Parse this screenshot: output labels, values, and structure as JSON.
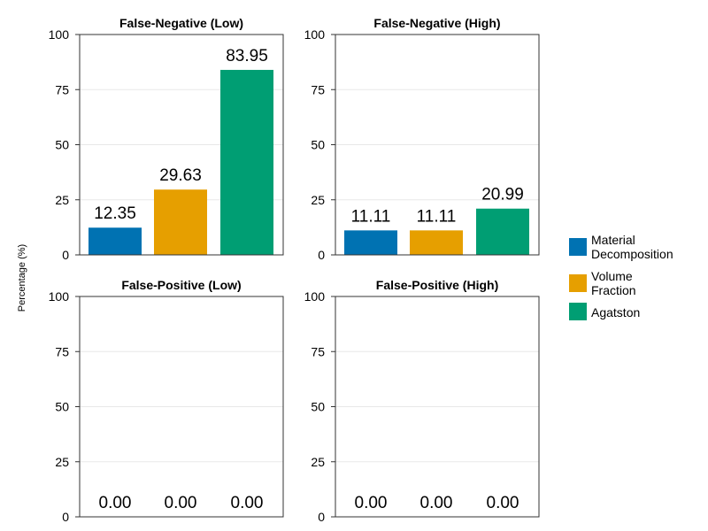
{
  "figure": {
    "ylabel": "Percentage (%)"
  },
  "legend": {
    "position": "right",
    "items": [
      {
        "name": "Material Decomposition",
        "lines": [
          "Material",
          "Decomposition"
        ],
        "color": "#0072b2"
      },
      {
        "name": "Volume Fraction",
        "lines": [
          "Volume",
          "Fraction"
        ],
        "color": "#e69f00"
      },
      {
        "name": "Agatston",
        "lines": [
          "Agatston"
        ],
        "color": "#009e73"
      }
    ]
  },
  "chart_data": [
    {
      "type": "bar",
      "title": "False-Negative (Low)",
      "categories": [
        "Material Decomposition",
        "Volume Fraction",
        "Agatston"
      ],
      "values": [
        12.35,
        29.63,
        83.95
      ],
      "data_labels": [
        "12.35",
        "29.63",
        "83.95"
      ],
      "ylim": [
        0,
        100
      ],
      "yticks": [
        0,
        25,
        50,
        75,
        100
      ],
      "grid": true
    },
    {
      "type": "bar",
      "title": "False-Negative (High)",
      "categories": [
        "Material Decomposition",
        "Volume Fraction",
        "Agatston"
      ],
      "values": [
        11.11,
        11.11,
        20.99
      ],
      "data_labels": [
        "11.11",
        "11.11",
        "20.99"
      ],
      "ylim": [
        0,
        100
      ],
      "yticks": [
        0,
        25,
        50,
        75,
        100
      ],
      "grid": true
    },
    {
      "type": "bar",
      "title": "False-Positive (Low)",
      "categories": [
        "Material Decomposition",
        "Volume Fraction",
        "Agatston"
      ],
      "values": [
        0.0,
        0.0,
        0.0
      ],
      "data_labels": [
        "0.00",
        "0.00",
        "0.00"
      ],
      "ylim": [
        0,
        100
      ],
      "yticks": [
        0,
        25,
        50,
        75,
        100
      ],
      "grid": true
    },
    {
      "type": "bar",
      "title": "False-Positive (High)",
      "categories": [
        "Material Decomposition",
        "Volume Fraction",
        "Agatston"
      ],
      "values": [
        0.0,
        0.0,
        0.0
      ],
      "data_labels": [
        "0.00",
        "0.00",
        "0.00"
      ],
      "ylim": [
        0,
        100
      ],
      "yticks": [
        0,
        25,
        50,
        75,
        100
      ],
      "grid": true
    }
  ]
}
